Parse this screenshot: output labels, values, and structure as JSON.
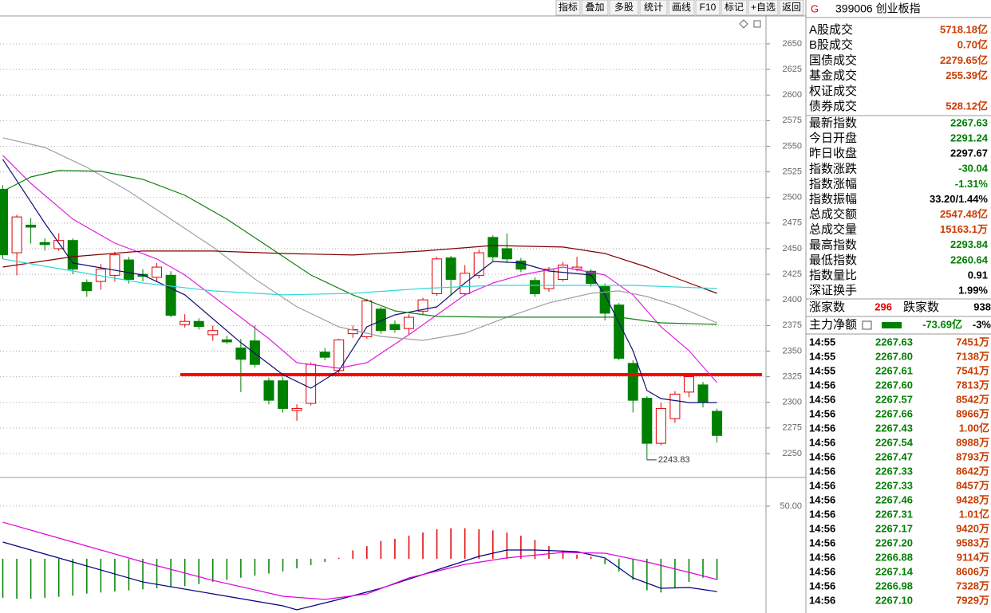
{
  "toolbar": {
    "buttons": [
      "指标",
      "叠加",
      "多股",
      "统计",
      "画线",
      "F10",
      "标记",
      "+自选",
      "返回"
    ]
  },
  "chart_data": [
    {
      "type": "candlestick",
      "xlim": [
        -0.2,
        54.5
      ],
      "ylim": [
        2227.4,
        2677.2
      ],
      "yticks": [
        2250,
        2275,
        2300,
        2325,
        2350,
        2375,
        2400,
        2425,
        2450,
        2475,
        2500,
        2525,
        2550,
        2575,
        2600,
        2625,
        2650
      ],
      "grid": true,
      "up_color": "#e00000",
      "down_color": "#008000",
      "open": [
        2508,
        2446,
        2473,
        2456,
        2450,
        2458,
        2417,
        2418,
        2424,
        2439,
        2425,
        2422,
        2424,
        2376,
        2379,
        2366,
        2361,
        2353,
        2360,
        2321,
        2321,
        2292,
        2299,
        2349,
        2331,
        2367,
        2364,
        2391,
        2376,
        2372,
        2389,
        2406,
        2441,
        2406,
        2424,
        2461,
        2450,
        2438,
        2419,
        2411,
        2420,
        2430,
        2428,
        2413,
        2395,
        2338,
        2304,
        2260,
        2284,
        2310,
        2317,
        2291.24
      ],
      "high": [
        2512,
        2483,
        2480,
        2460,
        2465,
        2460,
        2420,
        2435,
        2447,
        2442,
        2430,
        2436,
        2428,
        2386,
        2382,
        2375,
        2365,
        2362,
        2375,
        2324,
        2325,
        2298,
        2339,
        2353,
        2362,
        2375,
        2401,
        2393,
        2380,
        2386,
        2402,
        2442,
        2443,
        2434,
        2449,
        2463,
        2465,
        2441,
        2422,
        2432,
        2437,
        2442,
        2430,
        2416,
        2397,
        2341,
        2306,
        2300,
        2311,
        2328,
        2320,
        2293.84
      ],
      "low": [
        2440,
        2424,
        2455,
        2448,
        2448,
        2425,
        2403,
        2410,
        2418,
        2416,
        2418,
        2418,
        2383,
        2373,
        2371,
        2360,
        2357,
        2310,
        2334,
        2298,
        2290,
        2282,
        2297,
        2341,
        2328,
        2363,
        2362,
        2367,
        2368,
        2366,
        2385,
        2404,
        2405,
        2404,
        2421,
        2438,
        2436,
        2427,
        2403,
        2408,
        2418,
        2428,
        2413,
        2380,
        2341,
        2290,
        2243.83,
        2258,
        2280,
        2305,
        2295,
        2260.64
      ],
      "close": [
        2444,
        2481,
        2471,
        2454,
        2458,
        2430,
        2409,
        2430,
        2444,
        2420,
        2423,
        2432,
        2385,
        2379,
        2374,
        2370,
        2359,
        2342,
        2337,
        2302,
        2294,
        2294,
        2337,
        2344,
        2361,
        2371,
        2399,
        2370,
        2371,
        2383,
        2400,
        2440,
        2420,
        2426,
        2446,
        2442,
        2440,
        2430,
        2406,
        2430,
        2434,
        2432,
        2416,
        2387,
        2343,
        2302,
        2260,
        2294,
        2308,
        2325,
        2300,
        2267.63
      ],
      "series": [
        {
          "color": "#101070",
          "x": [
            0,
            3,
            5,
            10,
            13,
            17,
            20,
            22,
            24,
            26,
            28,
            31,
            33,
            35,
            37,
            39,
            42,
            43,
            45,
            46,
            47,
            49,
            51
          ],
          "values": [
            2537.2,
            2474.9,
            2436.0,
            2424.3,
            2404.9,
            2358.2,
            2327.0,
            2313.8,
            2330.9,
            2373.7,
            2385.4,
            2393.2,
            2416.5,
            2437.5,
            2436.0,
            2428.2,
            2424.3,
            2404.9,
            2350.4,
            2311.5,
            2303.7,
            2299.8,
            2299.8
          ]
        },
        {
          "color": "#e020e0",
          "x": [
            0,
            2,
            5,
            8,
            11,
            13,
            16,
            19,
            21,
            24,
            26,
            29,
            31,
            33,
            35,
            37,
            40,
            43,
            45,
            47,
            49,
            51
          ],
          "values": [
            2541.1,
            2513.8,
            2478.8,
            2455.4,
            2439.9,
            2424.3,
            2393.2,
            2362.1,
            2338.7,
            2333.3,
            2338.7,
            2366.0,
            2385.4,
            2404.9,
            2416.5,
            2424.3,
            2432.1,
            2424.3,
            2404.9,
            2373.7,
            2350.4,
            2319.3
          ]
        },
        {
          "color": "#a0a0a0",
          "x": [
            0,
            3,
            6,
            9,
            12,
            15,
            18,
            21,
            24,
            27,
            30,
            33,
            36,
            39,
            42,
            44,
            46,
            48,
            51
          ],
          "values": [
            2558.2,
            2548.8,
            2529.4,
            2506.0,
            2478.8,
            2451.6,
            2420.4,
            2393.2,
            2373.7,
            2364.4,
            2360.5,
            2367.5,
            2383.1,
            2397.1,
            2406.4,
            2408.8,
            2403.3,
            2394.7,
            2377.6
          ]
        },
        {
          "color": "#108010",
          "x": [
            0,
            2,
            4,
            7,
            10,
            13,
            16,
            19,
            22,
            25,
            28,
            31,
            35,
            40,
            44,
            47,
            51
          ],
          "values": [
            2506.0,
            2520.0,
            2526.3,
            2525.5,
            2517.7,
            2502.1,
            2478.8,
            2451.6,
            2424.3,
            2404.9,
            2389.3,
            2383.9,
            2383.1,
            2383.1,
            2383.1,
            2377.6,
            2376.1
          ]
        },
        {
          "color": "#800000",
          "x": [
            0,
            5,
            10,
            15,
            20,
            25,
            30,
            35,
            40,
            43,
            46,
            49,
            51
          ],
          "values": [
            2432.1,
            2442.2,
            2447.7,
            2447.7,
            2445.3,
            2443.8,
            2447.7,
            2453.1,
            2451.6,
            2445.3,
            2432.1,
            2416.5,
            2406.4
          ]
        },
        {
          "color": "#30d8d8",
          "x": [
            0,
            5,
            10,
            15,
            20,
            25,
            30,
            35,
            40,
            45,
            51
          ],
          "values": [
            2439.9,
            2428.2,
            2416.5,
            2408.8,
            2404.9,
            2406.4,
            2411.1,
            2414.2,
            2414.2,
            2414.2,
            2411.1
          ]
        }
      ],
      "hline": 2327,
      "hline_color": "#ff0000"
    },
    {
      "type": "bar",
      "xlim": [
        -0.2,
        54.5
      ],
      "ylim": [
        -51.5,
        76.5
      ],
      "yticks": [
        {
          "value": 50,
          "label": "50.00"
        }
      ],
      "grid": true,
      "up_color": "#e00000",
      "down_color": "#008000",
      "values": [
        -37,
        -38,
        -38,
        -37,
        -36,
        -35,
        -33,
        -32,
        -31,
        -30,
        -29,
        -28,
        -27,
        -26,
        -24,
        -22,
        -20,
        -18,
        -16,
        -14,
        -12,
        -9,
        -6,
        -3,
        1,
        8,
        12,
        17,
        19,
        22,
        25,
        28,
        29,
        29,
        28,
        27,
        25,
        22,
        18,
        12,
        8,
        4,
        2,
        -5,
        -12,
        -20,
        -30,
        -32,
        -28,
        -22,
        -18,
        -20
      ],
      "series": [
        {
          "color": "#000080",
          "x": [
            0,
            5,
            10,
            15,
            20,
            21,
            24,
            27,
            31,
            34,
            36,
            38,
            41,
            43,
            45,
            47,
            49,
            51
          ],
          "values": [
            15.9,
            -3.0,
            -22.0,
            -33.3,
            -44.7,
            -48.5,
            -38.6,
            -28.0,
            -10.6,
            2.3,
            8.3,
            8.3,
            6.8,
            0.8,
            -18.2,
            -28.0,
            -27.3,
            -31.1
          ]
        },
        {
          "color": "#e000e0",
          "x": [
            0,
            5,
            10,
            15,
            20,
            23,
            26,
            29,
            33,
            36,
            40,
            43,
            46,
            49,
            51
          ],
          "values": [
            34.8,
            15.9,
            -3.0,
            -20.5,
            -35.6,
            -38.6,
            -33.3,
            -18.2,
            -5.3,
            0.8,
            6.1,
            5.3,
            -3.0,
            -12.9,
            -19.7
          ]
        }
      ]
    }
  ],
  "quote_panel": {
    "mark": "G",
    "title": "399006 创业板指",
    "turnover": {
      "color": "#c83c00",
      "rows": [
        {
          "label": "A股成交",
          "value": "5718.18亿"
        },
        {
          "label": "B股成交",
          "value": "0.70亿"
        },
        {
          "label": "国债成交",
          "value": "2279.65亿"
        },
        {
          "label": "基金成交",
          "value": "255.39亿"
        },
        {
          "label": "权证成交"
        },
        {
          "label": "债券成交",
          "value": "528.12亿"
        }
      ]
    },
    "stats": [
      {
        "label": "最新指数",
        "value": "2267.63",
        "color": "#008000"
      },
      {
        "label": "今日开盘",
        "value": "2291.24",
        "color": "#008000"
      },
      {
        "label": "昨日收盘",
        "value": "2297.67",
        "color": "#000000"
      },
      {
        "label": "指数涨跌",
        "value": "-30.04",
        "color": "#008000"
      },
      {
        "label": "指数涨幅",
        "value": "-1.31%",
        "color": "#008000"
      },
      {
        "label": "指数振幅",
        "value": "33.20/1.44%",
        "color": "#000000"
      },
      {
        "label": "总成交额",
        "value": "2547.48亿",
        "color": "#c83c00"
      },
      {
        "label": "总成交量",
        "value": "15163.1万",
        "color": "#c83c00"
      },
      {
        "label": "最高指数",
        "value": "2293.84",
        "color": "#008000"
      },
      {
        "label": "最低指数",
        "value": "2260.64",
        "color": "#008000"
      },
      {
        "label": "指数量比",
        "value": "0.91",
        "color": "#000000"
      },
      {
        "label": "深证换手",
        "value": "1.99%",
        "color": "#000000"
      }
    ],
    "breadth": {
      "up_label": "涨家数",
      "up": "296",
      "down_label": "跌家数",
      "down": "938"
    },
    "flow": {
      "label": "主力净额",
      "value": "-73.69亿",
      "pct": "-3%"
    },
    "trades": {
      "price_color": "#008000",
      "volume_color": "#c83c00",
      "rows": [
        [
          "14:55",
          "2267.63",
          "7451万"
        ],
        [
          "14:55",
          "2267.80",
          "7138万"
        ],
        [
          "14:55",
          "2267.61",
          "7541万"
        ],
        [
          "14:56",
          "2267.60",
          "7813万"
        ],
        [
          "14:56",
          "2267.57",
          "8542万"
        ],
        [
          "14:56",
          "2267.66",
          "8966万"
        ],
        [
          "14:56",
          "2267.43",
          "1.00亿"
        ],
        [
          "14:56",
          "2267.54",
          "8988万"
        ],
        [
          "14:56",
          "2267.47",
          "8793万"
        ],
        [
          "14:56",
          "2267.33",
          "8642万"
        ],
        [
          "14:56",
          "2267.33",
          "8457万"
        ],
        [
          "14:56",
          "2267.46",
          "9428万"
        ],
        [
          "14:56",
          "2267.31",
          "1.01亿"
        ],
        [
          "14:56",
          "2267.17",
          "9420万"
        ],
        [
          "14:56",
          "2267.20",
          "9583万"
        ],
        [
          "14:56",
          "2266.88",
          "9114万"
        ],
        [
          "14:56",
          "2267.14",
          "8606万"
        ],
        [
          "14:56",
          "2266.98",
          "7328万"
        ],
        [
          "14:56",
          "2267.10",
          "7929万"
        ]
      ]
    }
  }
}
